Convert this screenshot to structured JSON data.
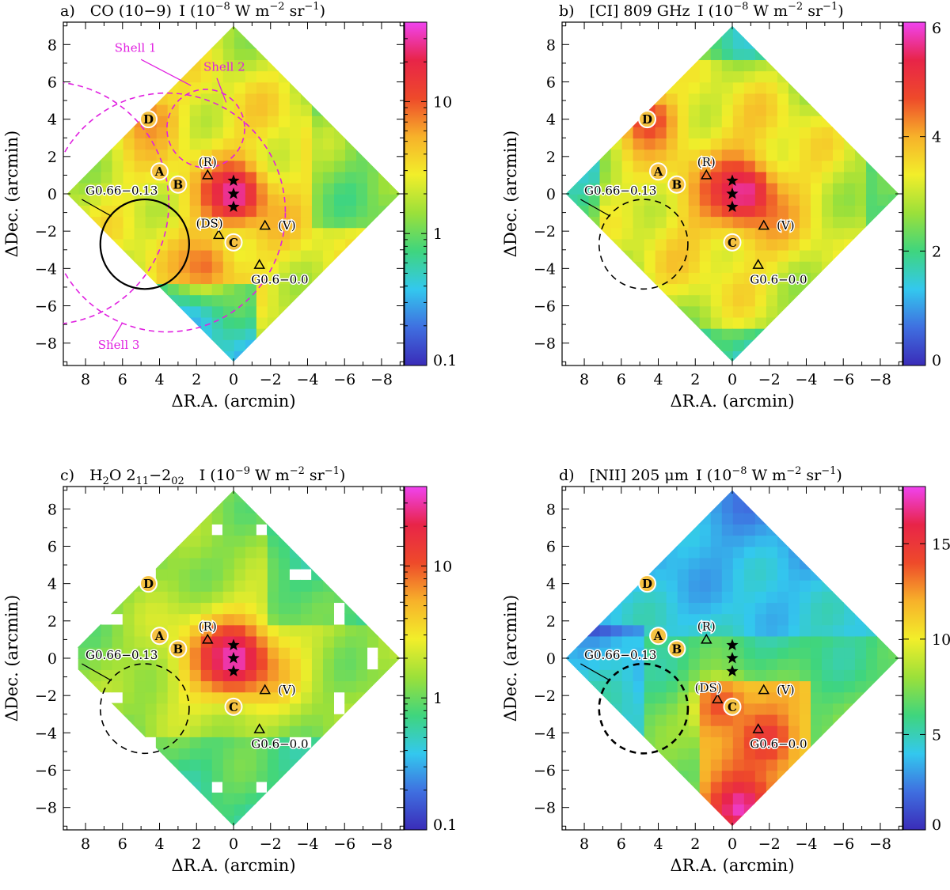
{
  "figure": {
    "panels": [
      {
        "id": "a",
        "letter": "a)",
        "line": "CO (10−9)",
        "unit_prefix": "I (10",
        "unit_exp": "−8",
        "unit_rest": " W m",
        "unit_m_exp": "−2",
        "unit_sr": " sr",
        "unit_sr_exp": "−1",
        "unit_close": ")",
        "scale": "log",
        "colorbar_ticks": [
          "0.1",
          "1",
          "10"
        ],
        "colorbar_range": [
          0.1,
          40
        ],
        "bright": [
          {
            "ra": 0.0,
            "dec": 0.0,
            "lvl": 0.96
          },
          {
            "ra": 4.6,
            "dec": 4.0,
            "lvl": 0.72
          },
          {
            "ra": 1.6,
            "dec": -3.8,
            "lvl": 0.74
          }
        ],
        "markers": {
          "circles": [
            {
              "label": "D",
              "ra": 4.6,
              "dec": 4.0
            },
            {
              "label": "A",
              "ra": 4.0,
              "dec": 1.2
            },
            {
              "label": "B",
              "ra": 3.0,
              "dec": 0.5
            },
            {
              "label": "C",
              "ra": 0.0,
              "dec": -2.6
            }
          ],
          "triangles": [
            {
              "label": "(R)",
              "ra": 1.4,
              "dec": 1.0,
              "lx": 1.4,
              "ly": 1.7
            },
            {
              "label": "(DS)",
              "ra": 0.8,
              "dec": -2.2,
              "lx": 1.3,
              "ly": -1.6
            },
            {
              "label": "(V)",
              "ra": -1.7,
              "dec": -1.7,
              "lx": -2.4,
              "ly": -1.7
            },
            {
              "label": "G0.6−0.0",
              "ra": -1.4,
              "dec": -3.8,
              "lx": -2.5,
              "ly": -4.6
            }
          ],
          "stars": [
            {
              "ra": 0,
              "dec": 0.7
            },
            {
              "ra": 0,
              "dec": 0.0
            },
            {
              "ra": 0,
              "dec": -0.7
            }
          ],
          "g066": {
            "label": "G0.66−0.13",
            "ra": 4.8,
            "dec": -2.7,
            "r": 2.4,
            "style": "solid"
          },
          "shells": [
            {
              "label": "Shell 1",
              "ra": 10.0,
              "dec": -0.5,
              "r": 6.5
            },
            {
              "label": "Shell 2",
              "ra": 1.5,
              "dec": 3.5,
              "r": 2.1
            },
            {
              "label": "Shell 3",
              "ra": 3.6,
              "dec": -1.0,
              "r": 6.4
            }
          ],
          "shell_labels": [
            {
              "label": "Shell 1",
              "ra": 5.3,
              "dec": 7.6
            },
            {
              "label": "Shell 2",
              "ra": 0.5,
              "dec": 6.6
            },
            {
              "label": "Shell 3",
              "ra": 6.2,
              "dec": -8.3
            }
          ]
        }
      },
      {
        "id": "b",
        "letter": "b)",
        "line": "[CI] 809 GHz",
        "unit_prefix": "I (10",
        "unit_exp": "−8",
        "unit_rest": " W m",
        "unit_m_exp": "−2",
        "unit_sr": " sr",
        "unit_sr_exp": "−1",
        "unit_close": ")",
        "scale": "linear",
        "colorbar_ticks": [
          "0",
          "2",
          "4",
          "6"
        ],
        "colorbar_range": [
          0,
          6
        ],
        "bright": [
          {
            "ra": -0.6,
            "dec": 0.1,
            "lvl": 0.95
          },
          {
            "ra": 4.6,
            "dec": 4.0,
            "lvl": 0.82
          }
        ],
        "markers": {
          "circles": [
            {
              "label": "D",
              "ra": 4.6,
              "dec": 4.0
            },
            {
              "label": "A",
              "ra": 4.0,
              "dec": 1.2
            },
            {
              "label": "B",
              "ra": 3.0,
              "dec": 0.5
            },
            {
              "label": "C",
              "ra": 0.0,
              "dec": -2.6
            }
          ],
          "triangles": [
            {
              "label": "(R)",
              "ra": 1.4,
              "dec": 1.0,
              "lx": 1.4,
              "ly": 1.7
            },
            {
              "label": "(V)",
              "ra": -1.7,
              "dec": -1.7,
              "lx": -2.4,
              "ly": -1.7
            },
            {
              "label": "G0.6−0.0",
              "ra": -1.4,
              "dec": -3.8,
              "lx": -2.5,
              "ly": -4.6
            }
          ],
          "stars": [
            {
              "ra": 0,
              "dec": 0.7
            },
            {
              "ra": 0,
              "dec": 0.0
            },
            {
              "ra": 0,
              "dec": -0.7
            }
          ],
          "g066": {
            "label": "G0.66−0.13",
            "ra": 4.8,
            "dec": -2.7,
            "r": 2.4,
            "style": "dashed"
          }
        }
      },
      {
        "id": "c",
        "letter": "c)",
        "line": "H",
        "line_sub": "2",
        "line_mid": "O 2",
        "line_sub2": "11",
        "line_mid2": "−2",
        "line_sub3": "02",
        "unit_prefix": "I (10",
        "unit_exp": "−9",
        "unit_rest": " W m",
        "unit_m_exp": "−2",
        "unit_sr": " sr",
        "unit_sr_exp": "−1",
        "unit_close": ")",
        "scale": "log",
        "colorbar_ticks": [
          "0.1",
          "1",
          "10"
        ],
        "colorbar_range": [
          0.1,
          40
        ],
        "bright": [
          {
            "ra": 0.0,
            "dec": 0.0,
            "lvl": 0.97
          }
        ],
        "markers": {
          "circles": [
            {
              "label": "D",
              "ra": 4.6,
              "dec": 4.0
            },
            {
              "label": "A",
              "ra": 4.0,
              "dec": 1.2
            },
            {
              "label": "B",
              "ra": 3.0,
              "dec": 0.5
            },
            {
              "label": "C",
              "ra": 0.0,
              "dec": -2.6
            }
          ],
          "triangles": [
            {
              "label": "(R)",
              "ra": 1.4,
              "dec": 1.0,
              "lx": 1.4,
              "ly": 1.7
            },
            {
              "label": "(V)",
              "ra": -1.7,
              "dec": -1.7,
              "lx": -2.4,
              "ly": -1.7
            },
            {
              "label": "G0.6−0.0",
              "ra": -1.4,
              "dec": -3.8,
              "lx": -2.5,
              "ly": -4.6
            }
          ],
          "stars": [
            {
              "ra": 0,
              "dec": 0.7
            },
            {
              "ra": 0,
              "dec": 0.0
            },
            {
              "ra": 0,
              "dec": -0.7
            }
          ],
          "g066": {
            "label": "G0.66−0.13",
            "ra": 4.8,
            "dec": -2.7,
            "r": 2.4,
            "style": "dashed"
          }
        }
      },
      {
        "id": "d",
        "letter": "d)",
        "line": "[NII] 205 μm",
        "unit_prefix": "I (10",
        "unit_exp": "−8",
        "unit_rest": " W m",
        "unit_m_exp": "−2",
        "unit_sr": " sr",
        "unit_sr_exp": "−1",
        "unit_close": ")",
        "scale": "linear",
        "colorbar_ticks": [
          "0",
          "5",
          "10",
          "15"
        ],
        "colorbar_range": [
          0,
          18
        ],
        "bright": [
          {
            "ra": -1.8,
            "dec": -4.3,
            "lvl": 0.84
          },
          {
            "ra": -0.4,
            "dec": -8.0,
            "lvl": 0.97
          },
          {
            "ra": 0.6,
            "dec": -2.6,
            "lvl": 0.78
          }
        ],
        "markers": {
          "circles": [
            {
              "label": "D",
              "ra": 4.6,
              "dec": 4.0
            },
            {
              "label": "A",
              "ra": 4.0,
              "dec": 1.2
            },
            {
              "label": "B",
              "ra": 3.0,
              "dec": 0.5
            },
            {
              "label": "C",
              "ra": 0.0,
              "dec": -2.6
            }
          ],
          "triangles": [
            {
              "label": "(R)",
              "ra": 1.4,
              "dec": 1.0,
              "lx": 1.4,
              "ly": 1.7
            },
            {
              "label": "(DS)",
              "ra": 0.8,
              "dec": -2.2,
              "lx": 1.3,
              "ly": -1.6
            },
            {
              "label": "(V)",
              "ra": -1.7,
              "dec": -1.7,
              "lx": -2.4,
              "ly": -1.7
            },
            {
              "label": "G0.6−0.0",
              "ra": -1.4,
              "dec": -3.8,
              "lx": -2.5,
              "ly": -4.6
            }
          ],
          "stars": [
            {
              "ra": 0,
              "dec": 0.7
            },
            {
              "ra": 0,
              "dec": 0.0
            },
            {
              "ra": 0,
              "dec": -0.7
            }
          ],
          "g066": {
            "label": "G0.66−0.13",
            "ra": 4.8,
            "dec": -2.7,
            "r": 2.4,
            "style": "dashed-bold"
          }
        }
      }
    ]
  },
  "chart_data": [
    {
      "type": "heatmap",
      "title": "a) CO (10−9) I (10−8 W m−2 sr−1)",
      "xlabel": "ΔR.A. (arcmin)",
      "ylabel": "ΔDec. (arcmin)",
      "xlim": [
        9.2,
        -9.2
      ],
      "ylim": [
        -9.2,
        9.2
      ],
      "xticks": [
        "8",
        "6",
        "4",
        "2",
        "0",
        "−2",
        "−4",
        "−6",
        "−8"
      ],
      "yticks": [
        "−8",
        "−6",
        "−4",
        "−2",
        "0",
        "2",
        "4",
        "6",
        "8"
      ],
      "colorbar": {
        "scale": "log",
        "min": 0.1,
        "max": 40,
        "ticks": [
          "0.1",
          "1",
          "10"
        ]
      }
    },
    {
      "type": "heatmap",
      "title": "b) [CI] 809 GHz I (10−8 W m−2 sr−1)",
      "xlabel": "ΔR.A. (arcmin)",
      "ylabel": "ΔDec. (arcmin)",
      "xlim": [
        9.2,
        -9.2
      ],
      "ylim": [
        -9.2,
        9.2
      ],
      "xticks": [
        "8",
        "6",
        "4",
        "2",
        "0",
        "−2",
        "−4",
        "−6",
        "−8"
      ],
      "yticks": [
        "−8",
        "−6",
        "−4",
        "−2",
        "0",
        "2",
        "4",
        "6",
        "8"
      ],
      "colorbar": {
        "scale": "linear",
        "min": 0,
        "max": 6,
        "ticks": [
          "0",
          "2",
          "4",
          "6"
        ]
      }
    },
    {
      "type": "heatmap",
      "title": "c) H2O 211−202 I (10−9 W m−2 sr−1)",
      "xlabel": "ΔR.A. (arcmin)",
      "ylabel": "ΔDec. (arcmin)",
      "xlim": [
        9.2,
        -9.2
      ],
      "ylim": [
        -9.2,
        9.2
      ],
      "xticks": [
        "8",
        "6",
        "4",
        "2",
        "0",
        "−2",
        "−4",
        "−6",
        "−8"
      ],
      "yticks": [
        "−8",
        "−6",
        "−4",
        "−2",
        "0",
        "2",
        "4",
        "6",
        "8"
      ],
      "colorbar": {
        "scale": "log",
        "min": 0.1,
        "max": 40,
        "ticks": [
          "0.1",
          "1",
          "10"
        ]
      }
    },
    {
      "type": "heatmap",
      "title": "d) [NII] 205 μm I (10−8 W m−2 sr−1)",
      "xlabel": "ΔR.A. (arcmin)",
      "ylabel": "ΔDec. (arcmin)",
      "xlim": [
        9.2,
        -9.2
      ],
      "ylim": [
        -9.2,
        9.2
      ],
      "xticks": [
        "8",
        "6",
        "4",
        "2",
        "0",
        "−2",
        "−4",
        "−6",
        "−8"
      ],
      "yticks": [
        "−8",
        "−6",
        "−4",
        "−2",
        "0",
        "2",
        "4",
        "6",
        "8"
      ],
      "colorbar": {
        "scale": "linear",
        "min": 0,
        "max": 18,
        "ticks": [
          "0",
          "5",
          "10",
          "15"
        ]
      }
    }
  ],
  "axes": {
    "xlabel": "ΔR.A. (arcmin)",
    "ylabel": "ΔDec. (arcmin)",
    "xticks": [
      8,
      6,
      4,
      2,
      0,
      -2,
      -4,
      -6,
      -8
    ],
    "yticks": [
      -8,
      -6,
      -4,
      -2,
      0,
      2,
      4,
      6,
      8
    ],
    "xtick_labels": [
      "8",
      "6",
      "4",
      "2",
      "0",
      "−2",
      "−4",
      "−6",
      "−8"
    ],
    "ytick_labels": [
      "−8",
      "−6",
      "−4",
      "−2",
      "0",
      "2",
      "4",
      "6",
      "8"
    ],
    "range": [
      -9.2,
      9.2
    ],
    "map_half_diagonal": 9.0
  },
  "colors": {
    "colormap": [
      "#3a2cb8",
      "#3f6fe0",
      "#33c8ee",
      "#3fd57e",
      "#9be03a",
      "#f2ee2a",
      "#f7b12a",
      "#ee4a2a",
      "#e82448",
      "#f043f0"
    ],
    "shell": "#e020e0",
    "marker_fill": "#f5c242"
  }
}
